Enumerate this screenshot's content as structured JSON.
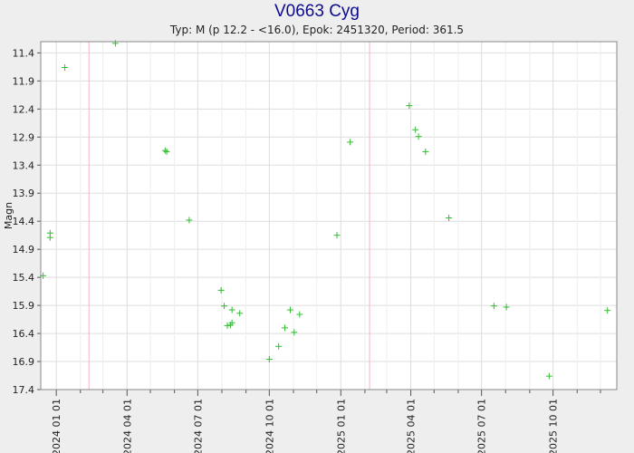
{
  "chart_data": {
    "type": "scatter",
    "title": "V0663 Cyg",
    "subtitle": "Typ: M (p 12.2 - <16.0), Epok: 2451320, Period: 361.5",
    "xlabel": "",
    "ylabel": "Magn",
    "y_inverted": true,
    "ylim": [
      17.4,
      11.2
    ],
    "xlim": [
      "2023-12-12",
      "2025-12-22"
    ],
    "grid": true,
    "marker": "+",
    "colors": {
      "points": "#33bb33",
      "title": "#0b0b8c",
      "grid": "#dddddd",
      "period_lines": "#f2b5c8",
      "plot_background": "#ffffff",
      "page_background": "#eeeeee"
    },
    "yticks": [
      "11.4",
      "11.9",
      "12.4",
      "12.9",
      "13.4",
      "13.9",
      "14.4",
      "14.9",
      "15.4",
      "15.9",
      "16.4",
      "16.9",
      "17.4"
    ],
    "xticks": [
      {
        "label": "2024 01 01",
        "date": "2024-01-01"
      },
      {
        "label": "2024 04 01",
        "date": "2024-04-01"
      },
      {
        "label": "2024 07 01",
        "date": "2024-07-01"
      },
      {
        "label": "2024 10 01",
        "date": "2024-10-01"
      },
      {
        "label": "2025 01 01",
        "date": "2025-01-01"
      },
      {
        "label": "2025 04 01",
        "date": "2025-04-01"
      },
      {
        "label": "2025 07 01",
        "date": "2025-07-01"
      },
      {
        "label": "2025 10 01",
        "date": "2025-10-01"
      }
    ],
    "minor_ticks": [
      "2023-12-01",
      "2024-02-01",
      "2024-03-01",
      "2024-05-01",
      "2024-06-01",
      "2024-08-01",
      "2024-09-01",
      "2024-11-01",
      "2024-12-01",
      "2025-02-01",
      "2025-03-01",
      "2025-05-01",
      "2025-06-01",
      "2025-08-01",
      "2025-09-01",
      "2025-11-01",
      "2025-12-01"
    ],
    "period_lines": [
      "2024-02-12",
      "2025-02-07"
    ],
    "series": [
      {
        "points": [
          {
            "x": "2023-12-15",
            "y": 15.37
          },
          {
            "x": "2023-12-24",
            "y": 14.61
          },
          {
            "x": "2023-12-24",
            "y": 14.69
          },
          {
            "x": "2024-01-12",
            "y": 11.66
          },
          {
            "x": "2024-03-17",
            "y": 11.23
          },
          {
            "x": "2024-05-20",
            "y": 13.14
          },
          {
            "x": "2024-05-22",
            "y": 13.16
          },
          {
            "x": "2024-06-20",
            "y": 14.38
          },
          {
            "x": "2024-07-31",
            "y": 15.63
          },
          {
            "x": "2024-08-04",
            "y": 15.91
          },
          {
            "x": "2024-08-08",
            "y": 16.26
          },
          {
            "x": "2024-08-12",
            "y": 16.25
          },
          {
            "x": "2024-08-14",
            "y": 16.21
          },
          {
            "x": "2024-08-14",
            "y": 15.98
          },
          {
            "x": "2024-08-24",
            "y": 16.04
          },
          {
            "x": "2024-10-01",
            "y": 16.86
          },
          {
            "x": "2024-10-13",
            "y": 16.63
          },
          {
            "x": "2024-10-21",
            "y": 16.3
          },
          {
            "x": "2024-10-28",
            "y": 15.98
          },
          {
            "x": "2024-11-02",
            "y": 16.38
          },
          {
            "x": "2024-11-09",
            "y": 16.06
          },
          {
            "x": "2024-12-27",
            "y": 14.65
          },
          {
            "x": "2025-01-13",
            "y": 12.99
          },
          {
            "x": "2025-03-30",
            "y": 12.34
          },
          {
            "x": "2025-04-07",
            "y": 12.77
          },
          {
            "x": "2025-04-11",
            "y": 12.89
          },
          {
            "x": "2025-04-20",
            "y": 13.16
          },
          {
            "x": "2025-05-20",
            "y": 14.34
          },
          {
            "x": "2025-07-17",
            "y": 15.91
          },
          {
            "x": "2025-08-02",
            "y": 15.93
          },
          {
            "x": "2025-09-26",
            "y": 17.16
          },
          {
            "x": "2025-12-10",
            "y": 15.99
          }
        ]
      }
    ]
  }
}
